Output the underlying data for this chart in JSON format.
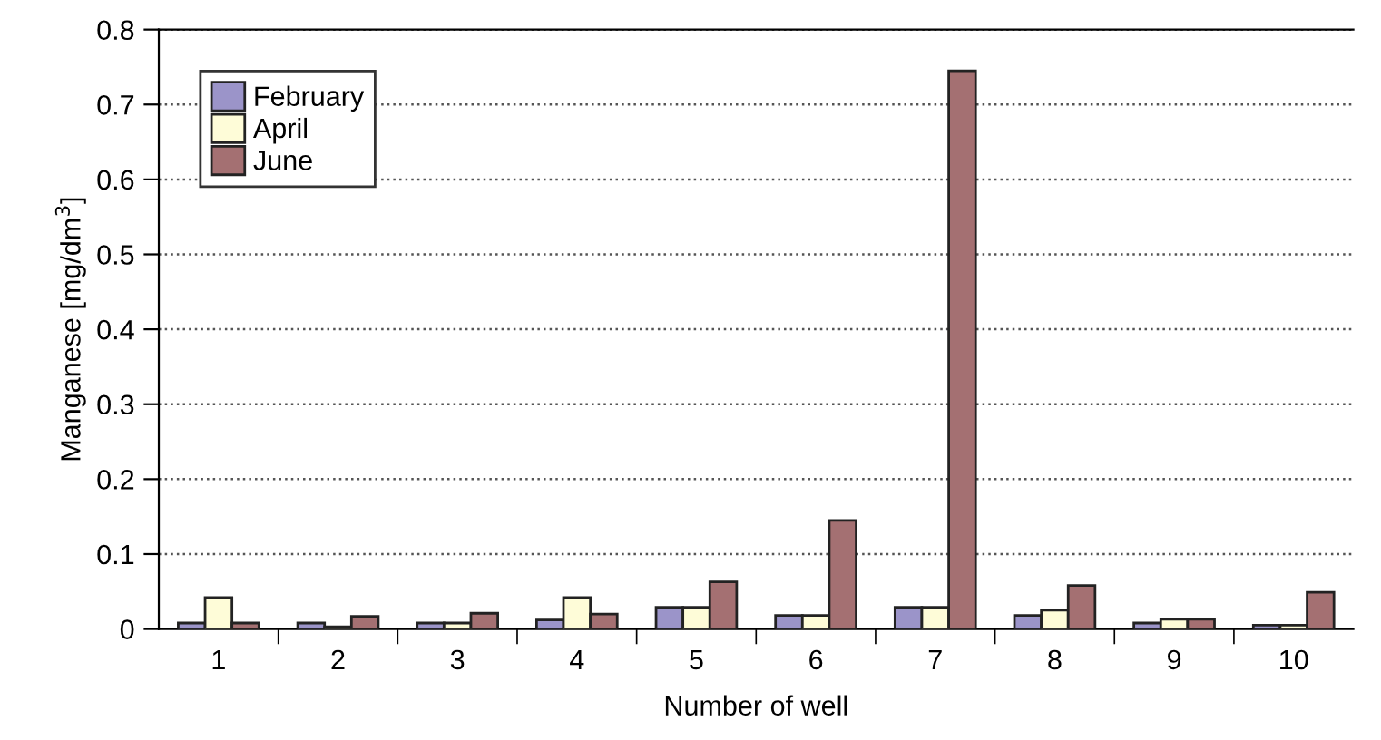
{
  "chart_data": {
    "type": "bar",
    "xlabel": "Number of well",
    "ylabel": "Manganese [mg/dm$^{3}$]",
    "categories": [
      "1",
      "2",
      "3",
      "4",
      "5",
      "6",
      "7",
      "8",
      "9",
      "10"
    ],
    "series": [
      {
        "name": "February",
        "color": "#9b94c9",
        "values": [
          0.008,
          0.008,
          0.008,
          0.012,
          0.029,
          0.018,
          0.029,
          0.018,
          0.008,
          0.005
        ]
      },
      {
        "name": "April",
        "color": "#fefcd8",
        "values": [
          0.042,
          0.003,
          0.008,
          0.042,
          0.029,
          0.018,
          0.029,
          0.025,
          0.013,
          0.005
        ]
      },
      {
        "name": "June",
        "color": "#a47072",
        "values": [
          0.008,
          0.017,
          0.021,
          0.02,
          0.063,
          0.145,
          0.745,
          0.058,
          0.013,
          0.049
        ]
      }
    ],
    "ylim": [
      0,
      0.8
    ],
    "yticks": [
      0,
      0.1,
      0.2,
      0.3,
      0.4,
      0.5,
      0.6,
      0.7,
      0.8
    ],
    "grid": "y",
    "legend": "top left"
  }
}
